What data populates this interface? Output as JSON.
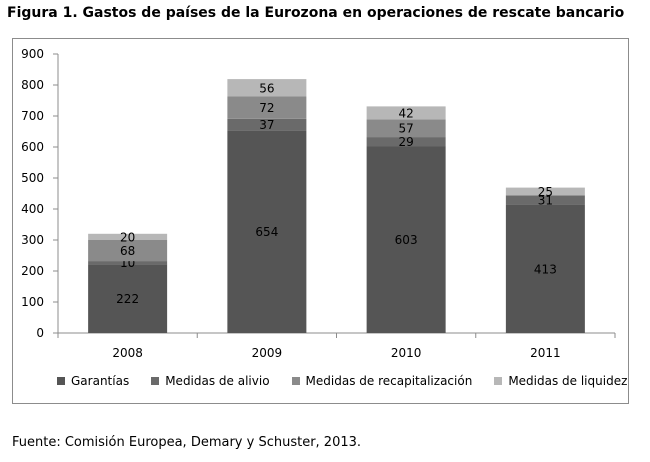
{
  "title": "Figura 1. Gastos de países de la Eurozona en operaciones de rescate bancario",
  "source": "Fuente: Comisión Europea, Demary y Schuster, 2013.",
  "colors": {
    "Garantías": "#555555",
    "Medidas de alivio": "#6a6a6a",
    "Medidas de recapitalización": "#8a8a8a",
    "Medidas de liquidez": "#b7b7b7"
  },
  "chart_data": {
    "type": "bar",
    "stacked": true,
    "categories": [
      "2008",
      "2009",
      "2010",
      "2011"
    ],
    "series": [
      {
        "name": "Garantías",
        "values": [
          222,
          654,
          603,
          413
        ]
      },
      {
        "name": "Medidas de alivio",
        "values": [
          10,
          37,
          29,
          31
        ]
      },
      {
        "name": "Medidas de recapitalización",
        "values": [
          68,
          72,
          57,
          0
        ]
      },
      {
        "name": "Medidas de liquidez",
        "values": [
          20,
          56,
          42,
          25
        ]
      }
    ],
    "data_labels": [
      [
        "222",
        "654",
        "603",
        "413"
      ],
      [
        "10",
        "37",
        "29",
        "31"
      ],
      [
        "68",
        "72",
        "57",
        ""
      ],
      [
        "20",
        "56",
        "42",
        "25"
      ]
    ],
    "ylim": [
      0,
      900
    ],
    "yticks": [
      0,
      100,
      200,
      300,
      400,
      500,
      600,
      700,
      800,
      900
    ],
    "ytick_labels": [
      "0",
      "100",
      "200",
      "300",
      "400",
      "500",
      "600",
      "700",
      "800",
      "900"
    ],
    "grid": false,
    "legend_position": "bottom"
  }
}
